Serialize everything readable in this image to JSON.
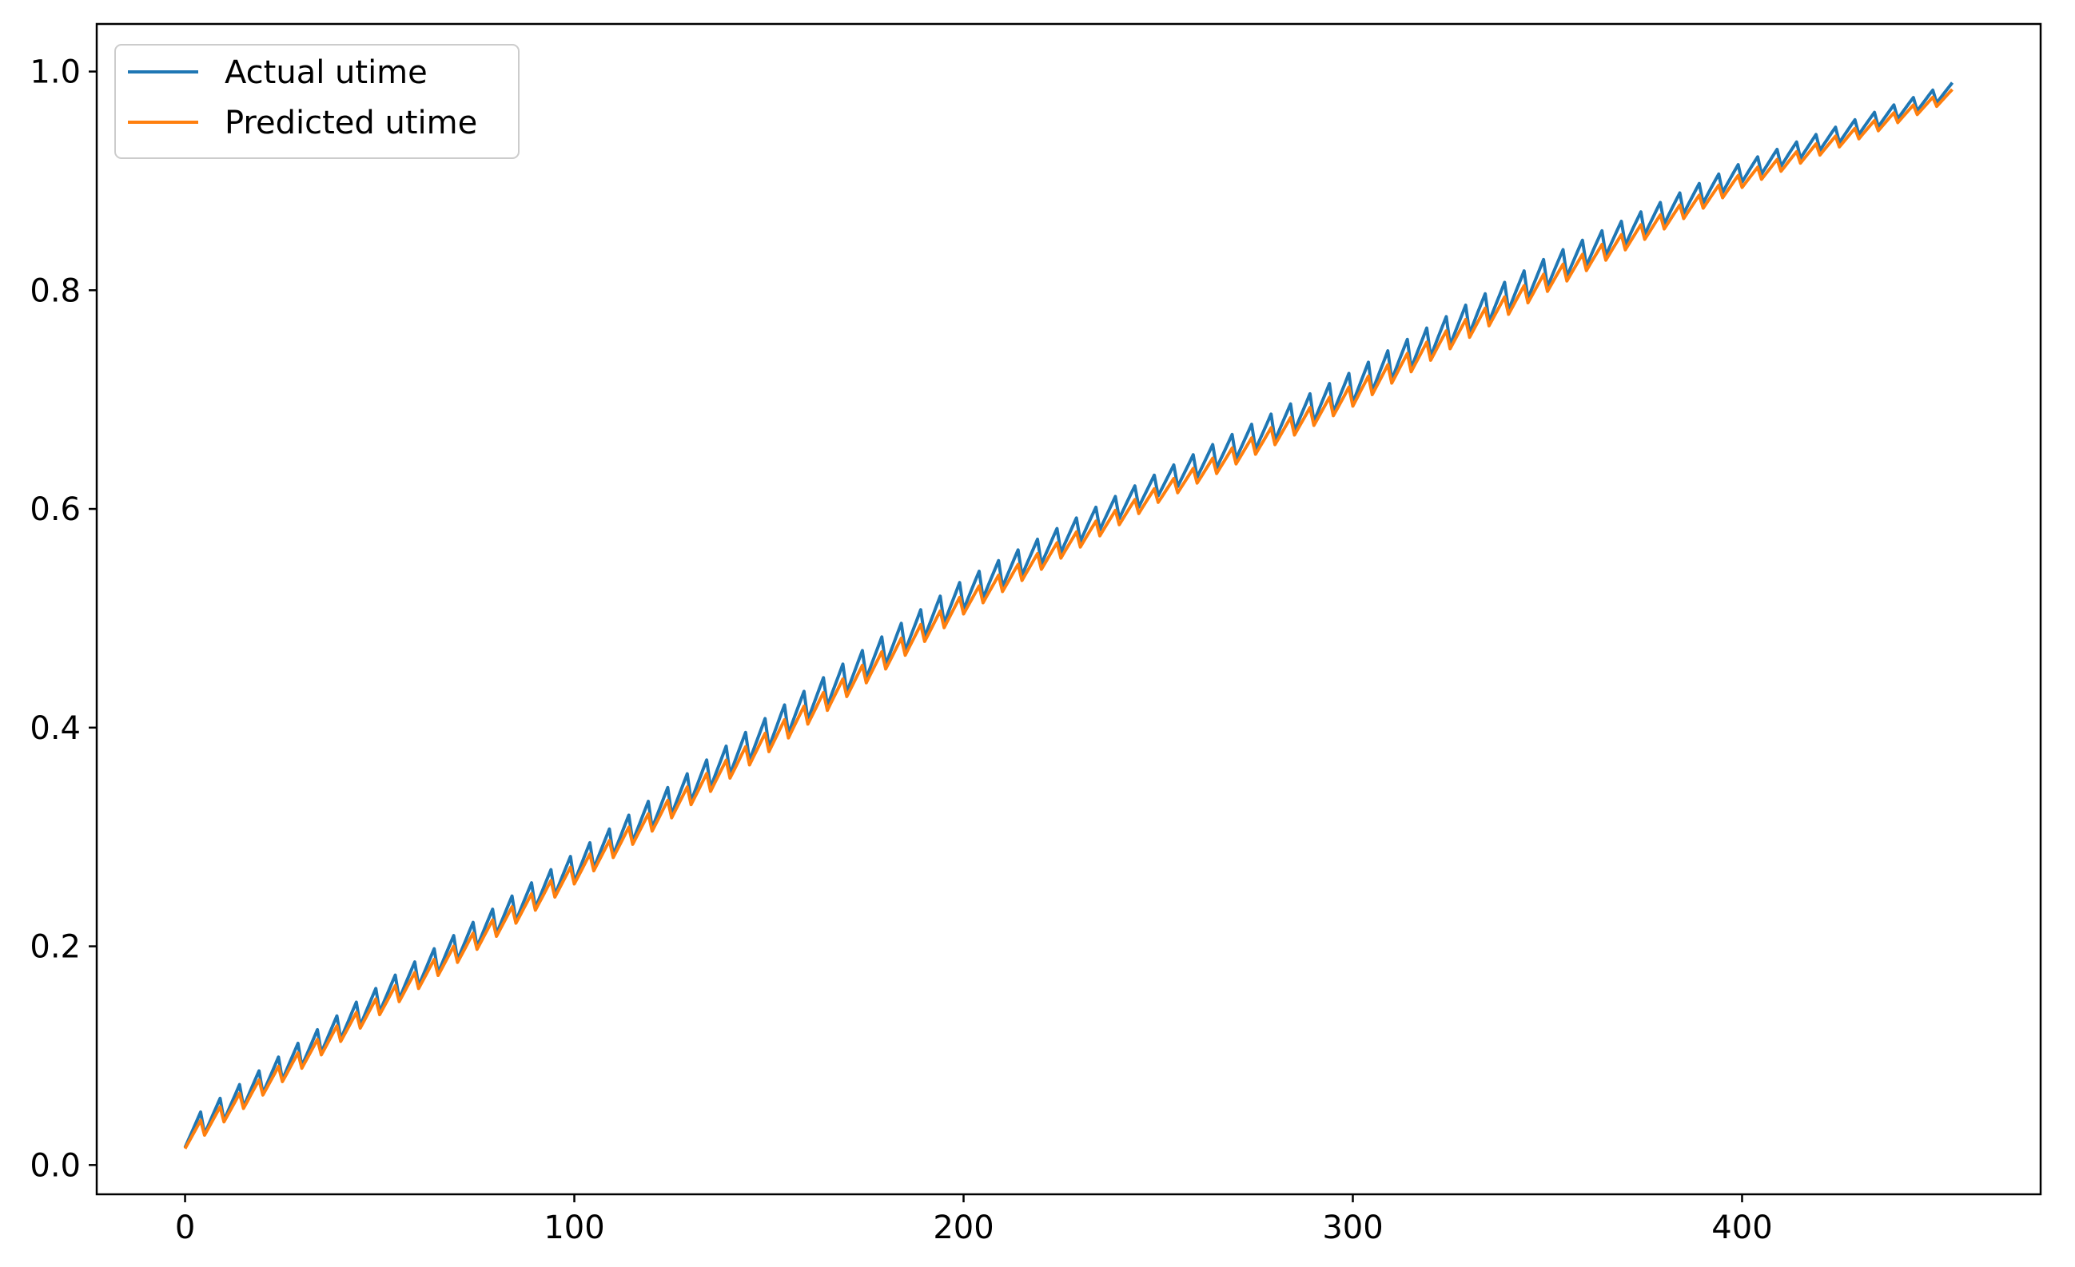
{
  "chart_data": {
    "type": "line",
    "title": "",
    "xlabel": "",
    "ylabel": "",
    "xlim": [
      -22.7,
      476.7
    ],
    "ylim": [
      -0.0268,
      1.0435
    ],
    "x_ticks": [
      0,
      100,
      200,
      300,
      400
    ],
    "x_tick_labels": [
      "0",
      "100",
      "200",
      "300",
      "400"
    ],
    "y_ticks": [
      0.0,
      0.2,
      0.4,
      0.6,
      0.8,
      1.0
    ],
    "y_tick_labels": [
      "0.0",
      "0.2",
      "0.4",
      "0.6",
      "0.8",
      "1.0"
    ],
    "grid": false,
    "legend_position": "top-left",
    "x_start": 0,
    "x_end": 454,
    "sawtooth_period": 5,
    "series": [
      {
        "name": "Actual utime",
        "color": "#1f77b4",
        "trend_x": [
          0,
          50,
          100,
          150,
          200,
          250,
          300,
          350,
          400,
          454
        ],
        "trend_y": [
          0.03,
          0.155,
          0.275,
          0.4,
          0.525,
          0.625,
          0.715,
          0.82,
          0.91,
          0.985
        ],
        "amplitude_x": [
          0,
          100,
          150,
          200,
          250,
          300,
          350,
          400,
          454
        ],
        "amplitude_y": [
          0.028,
          0.032,
          0.036,
          0.034,
          0.026,
          0.036,
          0.034,
          0.022,
          0.016
        ]
      },
      {
        "name": "Predicted utime",
        "color": "#ff7f0e",
        "trend_x": [
          0,
          50,
          100,
          150,
          200,
          250,
          300,
          350,
          400,
          454
        ],
        "trend_y": [
          0.025,
          0.148,
          0.268,
          0.39,
          0.515,
          0.615,
          0.706,
          0.81,
          0.902,
          0.98
        ],
        "amplitude_x": [
          0,
          100,
          150,
          200,
          250,
          300,
          350,
          400,
          454
        ],
        "amplitude_y": [
          0.02,
          0.022,
          0.024,
          0.022,
          0.018,
          0.024,
          0.022,
          0.016,
          0.012
        ]
      }
    ]
  }
}
